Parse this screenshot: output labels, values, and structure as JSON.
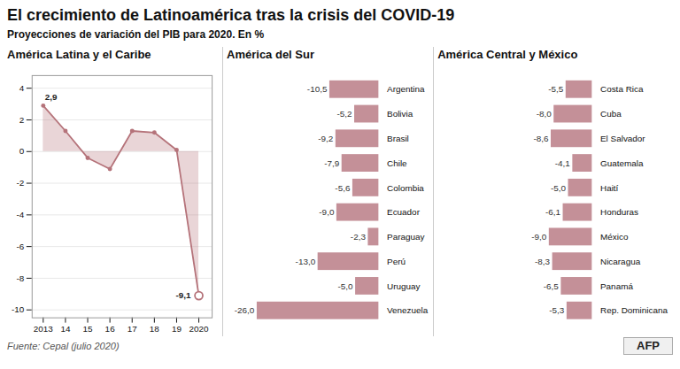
{
  "title": "El crecimiento de Latinoamérica tras la crisis del COVID-19",
  "subtitle": "Proyecciones de variación del PIB para 2020. En %",
  "source": "Fuente: Cepal (julio 2020)",
  "credit": "AFP",
  "chart_data": [
    {
      "type": "line",
      "title": "América Latina y el Caribe",
      "x": [
        2013,
        2014,
        2015,
        2016,
        2017,
        2018,
        2019,
        2020
      ],
      "values": [
        2.9,
        1.3,
        -0.4,
        -1.1,
        1.3,
        1.2,
        0.1,
        -9.1
      ],
      "color": "#b5737a",
      "marker": "circle",
      "xlim": [
        2012.5,
        2020.6
      ],
      "xticks": [
        2013,
        {
          "value": 2014,
          "label": "14"
        },
        {
          "value": 2015,
          "label": "15"
        },
        {
          "value": 2016,
          "label": "16"
        },
        {
          "value": 2017,
          "label": "17"
        },
        {
          "value": 2018,
          "label": "18"
        },
        {
          "value": 2019,
          "label": "19"
        },
        2020
      ],
      "ylim": [
        -10.5,
        4.8
      ],
      "yticks": [
        4,
        2,
        0,
        -2,
        -4,
        -6,
        -8,
        -10
      ],
      "grid": true,
      "annotations": [
        {
          "x": 2013,
          "y": 2.9,
          "text": "2,9"
        },
        {
          "x": 2020,
          "y": -9.1,
          "text": "-9,1"
        }
      ]
    },
    {
      "type": "bar",
      "orientation": "horizontal",
      "title": "América del Sur",
      "categories": [
        "Argentina",
        "Bolivia",
        "Brasil",
        "Chile",
        "Colombia",
        "Ecuador",
        "Paraguay",
        "Perú",
        "Uruguay",
        "Venezuela"
      ],
      "values": [
        -10.5,
        -5.2,
        -9.2,
        -7.9,
        -5.6,
        -9.0,
        -2.3,
        -13.0,
        -5.0,
        -26.0
      ],
      "value_labels": [
        "-10,5",
        "-5,2",
        "-9,2",
        "-7,9",
        "-5,6",
        "-9,0",
        "-2,3",
        "-13,0",
        "-5,0",
        "-26,0"
      ],
      "color": "#c49098",
      "data_labels": true,
      "tick_labels": "y",
      "xlim": [
        -26.0,
        0
      ]
    },
    {
      "type": "bar",
      "orientation": "horizontal",
      "title": "América Central y México",
      "categories": [
        "Costa Rica",
        "Cuba",
        "El Salvador",
        "Guatemala",
        "Haití",
        "Honduras",
        "México",
        "Nicaragua",
        "Panamá",
        "Rep. Dominicana"
      ],
      "values": [
        -5.5,
        -8.0,
        -8.6,
        -4.1,
        -5.0,
        -6.1,
        -9.0,
        -8.3,
        -6.5,
        -5.3
      ],
      "value_labels": [
        "-5,5",
        "-8,0",
        "-8,6",
        "-4,1",
        "-5,0",
        "-6,1",
        "-9,0",
        "-8,3",
        "-6,5",
        "-5,3"
      ],
      "color": "#c49098",
      "data_labels": true,
      "tick_labels": "y",
      "xlim": [
        -26.0,
        0
      ]
    }
  ]
}
